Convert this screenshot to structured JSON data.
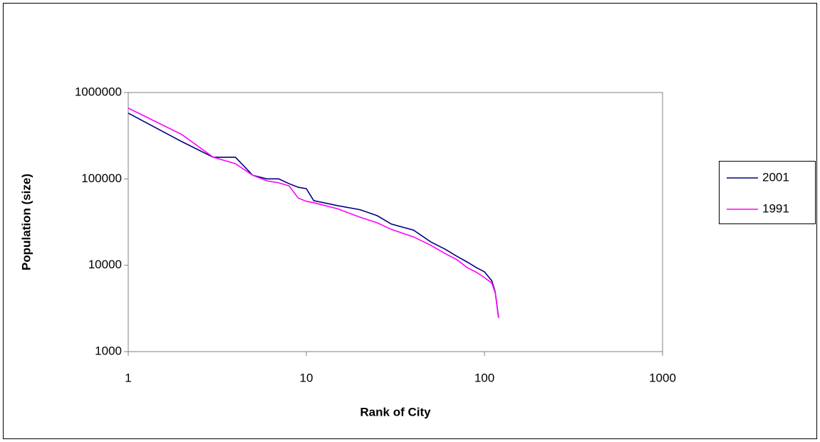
{
  "chart_data": {
    "type": "line",
    "x_title": "Rank of City",
    "y_title": "Population (size)",
    "xscale": "log",
    "yscale": "log",
    "xlim": [
      1,
      1000
    ],
    "ylim": [
      1000,
      1000000
    ],
    "xticks": [
      1,
      10,
      100,
      1000
    ],
    "yticks": [
      1000,
      10000,
      100000,
      1000000
    ],
    "grid": false,
    "legend": "right",
    "x": [
      1,
      2,
      3,
      4,
      5,
      6,
      7,
      8,
      9,
      10,
      11,
      15,
      20,
      25,
      30,
      40,
      50,
      60,
      70,
      80,
      90,
      100,
      110,
      115,
      120
    ],
    "series": [
      {
        "name": "2001",
        "color": "#000080",
        "values": [
          577000,
          270000,
          178000,
          178000,
          110000,
          100000,
          100000,
          88000,
          80000,
          77000,
          56000,
          49000,
          44000,
          37500,
          30000,
          25500,
          18600,
          15400,
          12700,
          10900,
          9400,
          8400,
          6600,
          4900,
          2500
        ]
      },
      {
        "name": "1991",
        "color": "#ff00ff",
        "values": [
          660000,
          326000,
          178000,
          150000,
          110000,
          95000,
          90000,
          83000,
          60000,
          55000,
          53000,
          45000,
          36000,
          31000,
          26000,
          21300,
          17000,
          13700,
          11600,
          9400,
          8300,
          7200,
          6200,
          4800,
          2450
        ]
      }
    ]
  }
}
